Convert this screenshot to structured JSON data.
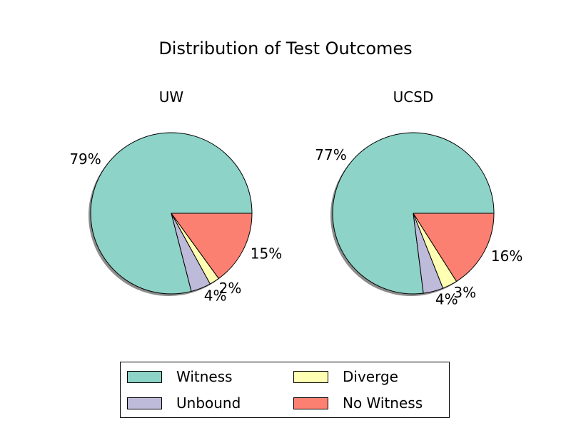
{
  "title": "Distribution of Test Outcomes",
  "legend": {
    "placement": "bottom-center",
    "entries": [
      {
        "label": "Witness",
        "color": "#8dd3c7"
      },
      {
        "label": "Unbound",
        "color": "#bebada"
      },
      {
        "label": "Diverge",
        "color": "#ffffb3"
      },
      {
        "label": "No Witness",
        "color": "#fb8072"
      }
    ]
  },
  "chart_data": [
    {
      "type": "pie",
      "title": "UW",
      "categories": [
        "Witness",
        "Unbound",
        "Diverge",
        "No Witness"
      ],
      "values": [
        79,
        4,
        2,
        15
      ],
      "labels": [
        "79%",
        "4%",
        "2%",
        "15%"
      ],
      "colors": [
        "#8dd3c7",
        "#bebada",
        "#ffffb3",
        "#fb8072"
      ],
      "shadow": true
    },
    {
      "type": "pie",
      "title": "UCSD",
      "categories": [
        "Witness",
        "Unbound",
        "Diverge",
        "No Witness"
      ],
      "values": [
        77,
        4,
        3,
        16
      ],
      "labels": [
        "77%",
        "4%",
        "3%",
        "16%"
      ],
      "colors": [
        "#8dd3c7",
        "#bebada",
        "#ffffb3",
        "#fb8072"
      ],
      "shadow": true
    }
  ]
}
